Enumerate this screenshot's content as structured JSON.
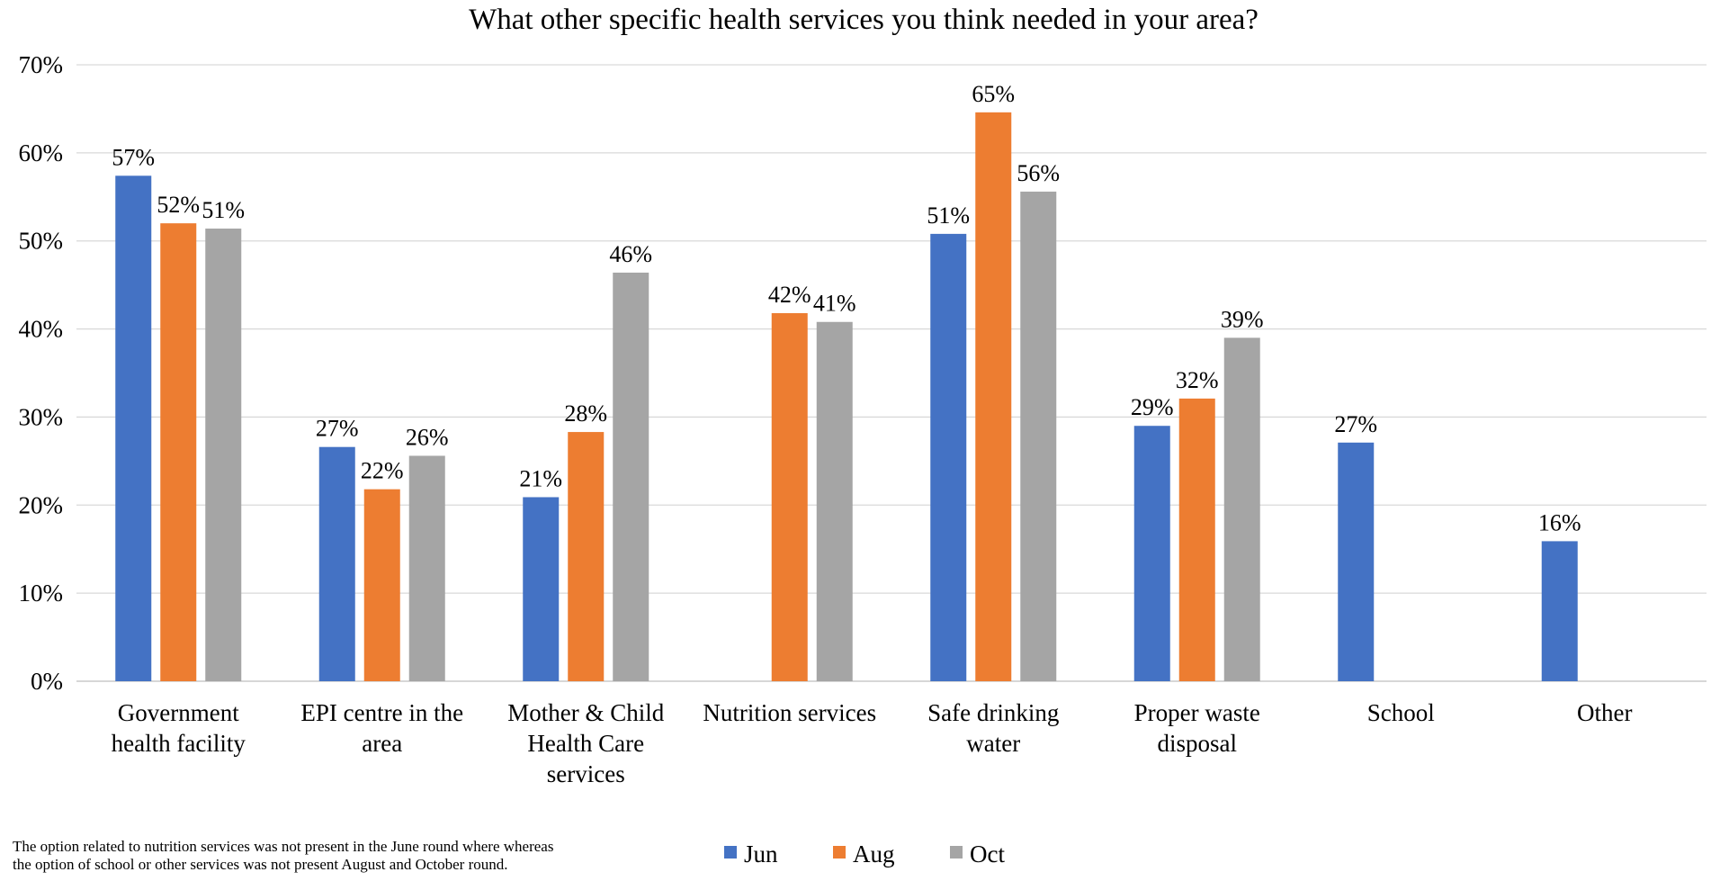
{
  "chart_data": {
    "type": "bar",
    "title": "What other specific health services you think needed in your area?",
    "categories": [
      [
        "Government",
        "health facility"
      ],
      [
        "EPI centre in the",
        "area"
      ],
      [
        "Mother & Child",
        "Health Care",
        "services"
      ],
      [
        "Nutrition services"
      ],
      [
        "Safe drinking",
        "water"
      ],
      [
        "Proper waste",
        "disposal"
      ],
      [
        "School"
      ],
      [
        "Other"
      ]
    ],
    "series": [
      {
        "name": "Jun",
        "color": "#4472C4",
        "values": [
          57,
          27,
          21,
          null,
          51,
          29,
          27,
          16
        ]
      },
      {
        "name": "Aug",
        "color": "#ED7D31",
        "values": [
          52,
          22,
          28,
          42,
          65,
          32,
          null,
          null
        ]
      },
      {
        "name": "Oct",
        "color": "#A5A5A5",
        "values": [
          51,
          26,
          46,
          41,
          56,
          39,
          null,
          null
        ]
      }
    ],
    "bar_heights": {
      "Jun": [
        57.4,
        26.6,
        20.9,
        null,
        50.8,
        29.0,
        27.1,
        15.9
      ],
      "Aug": [
        52.0,
        21.8,
        28.3,
        41.8,
        64.6,
        32.1,
        null,
        null
      ],
      "Oct": [
        51.4,
        25.6,
        46.4,
        40.8,
        55.6,
        39.0,
        null,
        null
      ]
    },
    "ylim": [
      0,
      70
    ],
    "yticks": [
      "0%",
      "10%",
      "20%",
      "30%",
      "40%",
      "50%",
      "60%",
      "70%"
    ],
    "ytick_values": [
      0,
      10,
      20,
      30,
      40,
      50,
      60,
      70
    ],
    "value_suffix": "%",
    "grid": true,
    "legend_position": "bottom"
  },
  "footnote": {
    "line1": "The option related to nutrition services was not present in the June round where whereas",
    "line2": "the option of school or other services was not present August and October round."
  }
}
